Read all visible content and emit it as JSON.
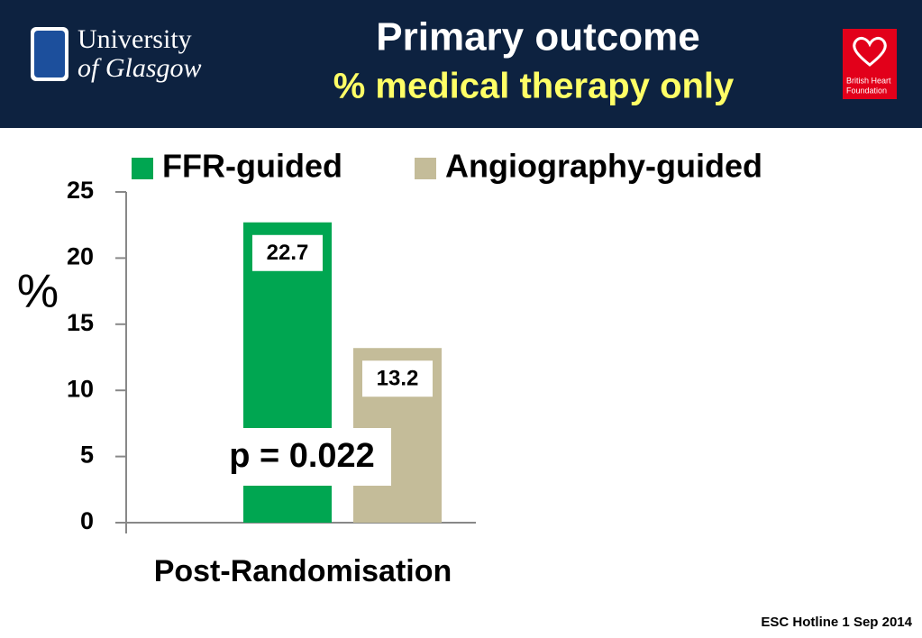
{
  "header": {
    "logo_left": [
      "University",
      "of Glasgow"
    ],
    "logo_right": [
      "British Heart",
      "Foundation"
    ]
  },
  "footer": "ESC Hotline 1 Sep 2014",
  "chart_data": {
    "type": "bar",
    "title": "Primary outcome",
    "subtitle": "% medical therapy only",
    "y_label": "%",
    "categories": [
      "Post-Randomisation"
    ],
    "series": [
      {
        "name": "FFR-guided",
        "color": "#00a651",
        "values": [
          22.7
        ]
      },
      {
        "name": "Angiography-guided",
        "color": "#c4bc99",
        "values": [
          13.2
        ]
      }
    ],
    "ylim": [
      0,
      25
    ],
    "yticks": [
      0,
      5,
      10,
      15,
      20,
      25
    ],
    "annotation": "p = 0.022"
  }
}
